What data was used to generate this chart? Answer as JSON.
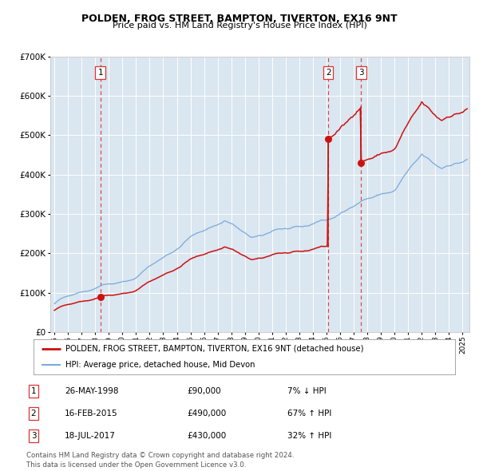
{
  "title": "POLDEN, FROG STREET, BAMPTON, TIVERTON, EX16 9NT",
  "subtitle": "Price paid vs. HM Land Registry's House Price Index (HPI)",
  "legend_line1": "POLDEN, FROG STREET, BAMPTON, TIVERTON, EX16 9NT (detached house)",
  "legend_line2": "HPI: Average price, detached house, Mid Devon",
  "transactions": [
    {
      "label": "1",
      "x": 1998.38,
      "price": 90000
    },
    {
      "label": "2",
      "x": 2015.12,
      "price": 490000
    },
    {
      "label": "3",
      "x": 2017.54,
      "price": 430000
    }
  ],
  "table_rows": [
    {
      "num": "1",
      "date": "26-MAY-1998",
      "price": "£90,000",
      "note": "7% ↓ HPI"
    },
    {
      "num": "2",
      "date": "16-FEB-2015",
      "price": "£490,000",
      "note": "67% ↑ HPI"
    },
    {
      "num": "3",
      "date": "18-JUL-2017",
      "price": "£430,000",
      "note": "32% ↑ HPI"
    }
  ],
  "footer": "Contains HM Land Registry data © Crown copyright and database right 2024.\nThis data is licensed under the Open Government Licence v3.0.",
  "hpi_color": "#7aaadd",
  "price_color": "#cc1111",
  "marker_color": "#cc1111",
  "dashed_color": "#dd3333",
  "bg_color": "#dae6f0",
  "ylim": [
    0,
    700000
  ],
  "xlim_start": 1994.7,
  "xlim_end": 2025.5,
  "yticks": [
    0,
    100000,
    200000,
    300000,
    400000,
    500000,
    600000,
    700000
  ],
  "xticks": [
    1995,
    1996,
    1997,
    1998,
    1999,
    2000,
    2001,
    2002,
    2003,
    2004,
    2005,
    2006,
    2007,
    2008,
    2009,
    2010,
    2011,
    2012,
    2013,
    2014,
    2015,
    2016,
    2017,
    2018,
    2019,
    2020,
    2021,
    2022,
    2023,
    2024,
    2025
  ]
}
